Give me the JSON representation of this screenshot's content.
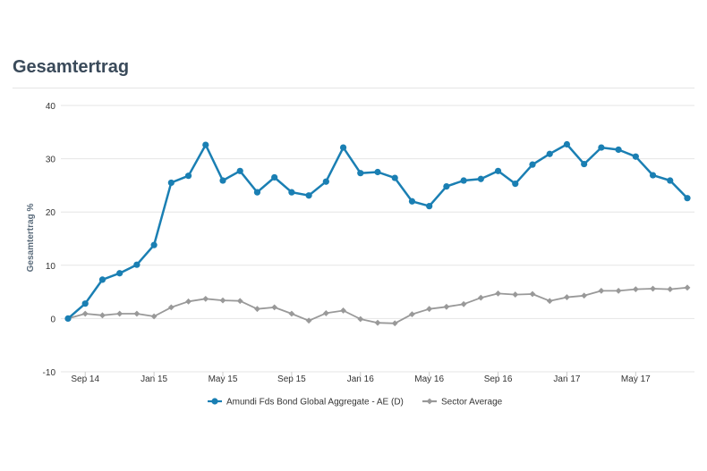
{
  "chart_data": {
    "type": "line",
    "title": "Gesamtertrag",
    "xlabel": "",
    "ylabel": "Gesamtertrag %",
    "ylim": [
      -10,
      40
    ],
    "yticks": [
      40,
      30,
      20,
      10,
      0,
      -10
    ],
    "xtick_labels": [
      "Sep 14",
      "Jan 15",
      "May 15",
      "Sep 15",
      "Jan 16",
      "May 16",
      "Sep 16",
      "Jan 17",
      "May 17"
    ],
    "grid": true,
    "legend_position": "bottom",
    "series": [
      {
        "name": "Amundi Fds Bond Global Aggregate - AE (D)",
        "color": "#1a7fb3",
        "marker": "circle",
        "values": [
          0,
          2.8,
          7.3,
          8.5,
          10.1,
          13.8,
          25.5,
          26.8,
          32.6,
          25.9,
          27.7,
          23.7,
          26.5,
          23.7,
          23.1,
          25.7,
          32.1,
          27.3,
          27.5,
          26.4,
          22.0,
          21.1,
          24.8,
          25.9,
          26.2,
          27.7,
          25.3,
          28.9,
          30.9,
          32.7,
          29.0,
          32.1,
          31.7,
          30.4,
          26.9,
          25.9,
          22.6
        ]
      },
      {
        "name": "Sector Average",
        "color": "#999999",
        "marker": "diamond",
        "values": [
          0,
          0.9,
          0.6,
          0.9,
          0.9,
          0.4,
          2.1,
          3.2,
          3.7,
          3.4,
          3.3,
          1.8,
          2.1,
          0.9,
          -0.4,
          1.0,
          1.5,
          -0.1,
          -0.8,
          -0.9,
          0.8,
          1.8,
          2.2,
          2.7,
          3.9,
          4.7,
          4.5,
          4.6,
          3.3,
          4.0,
          4.3,
          5.2,
          5.2,
          5.5,
          5.6,
          5.5,
          5.8
        ]
      }
    ]
  }
}
